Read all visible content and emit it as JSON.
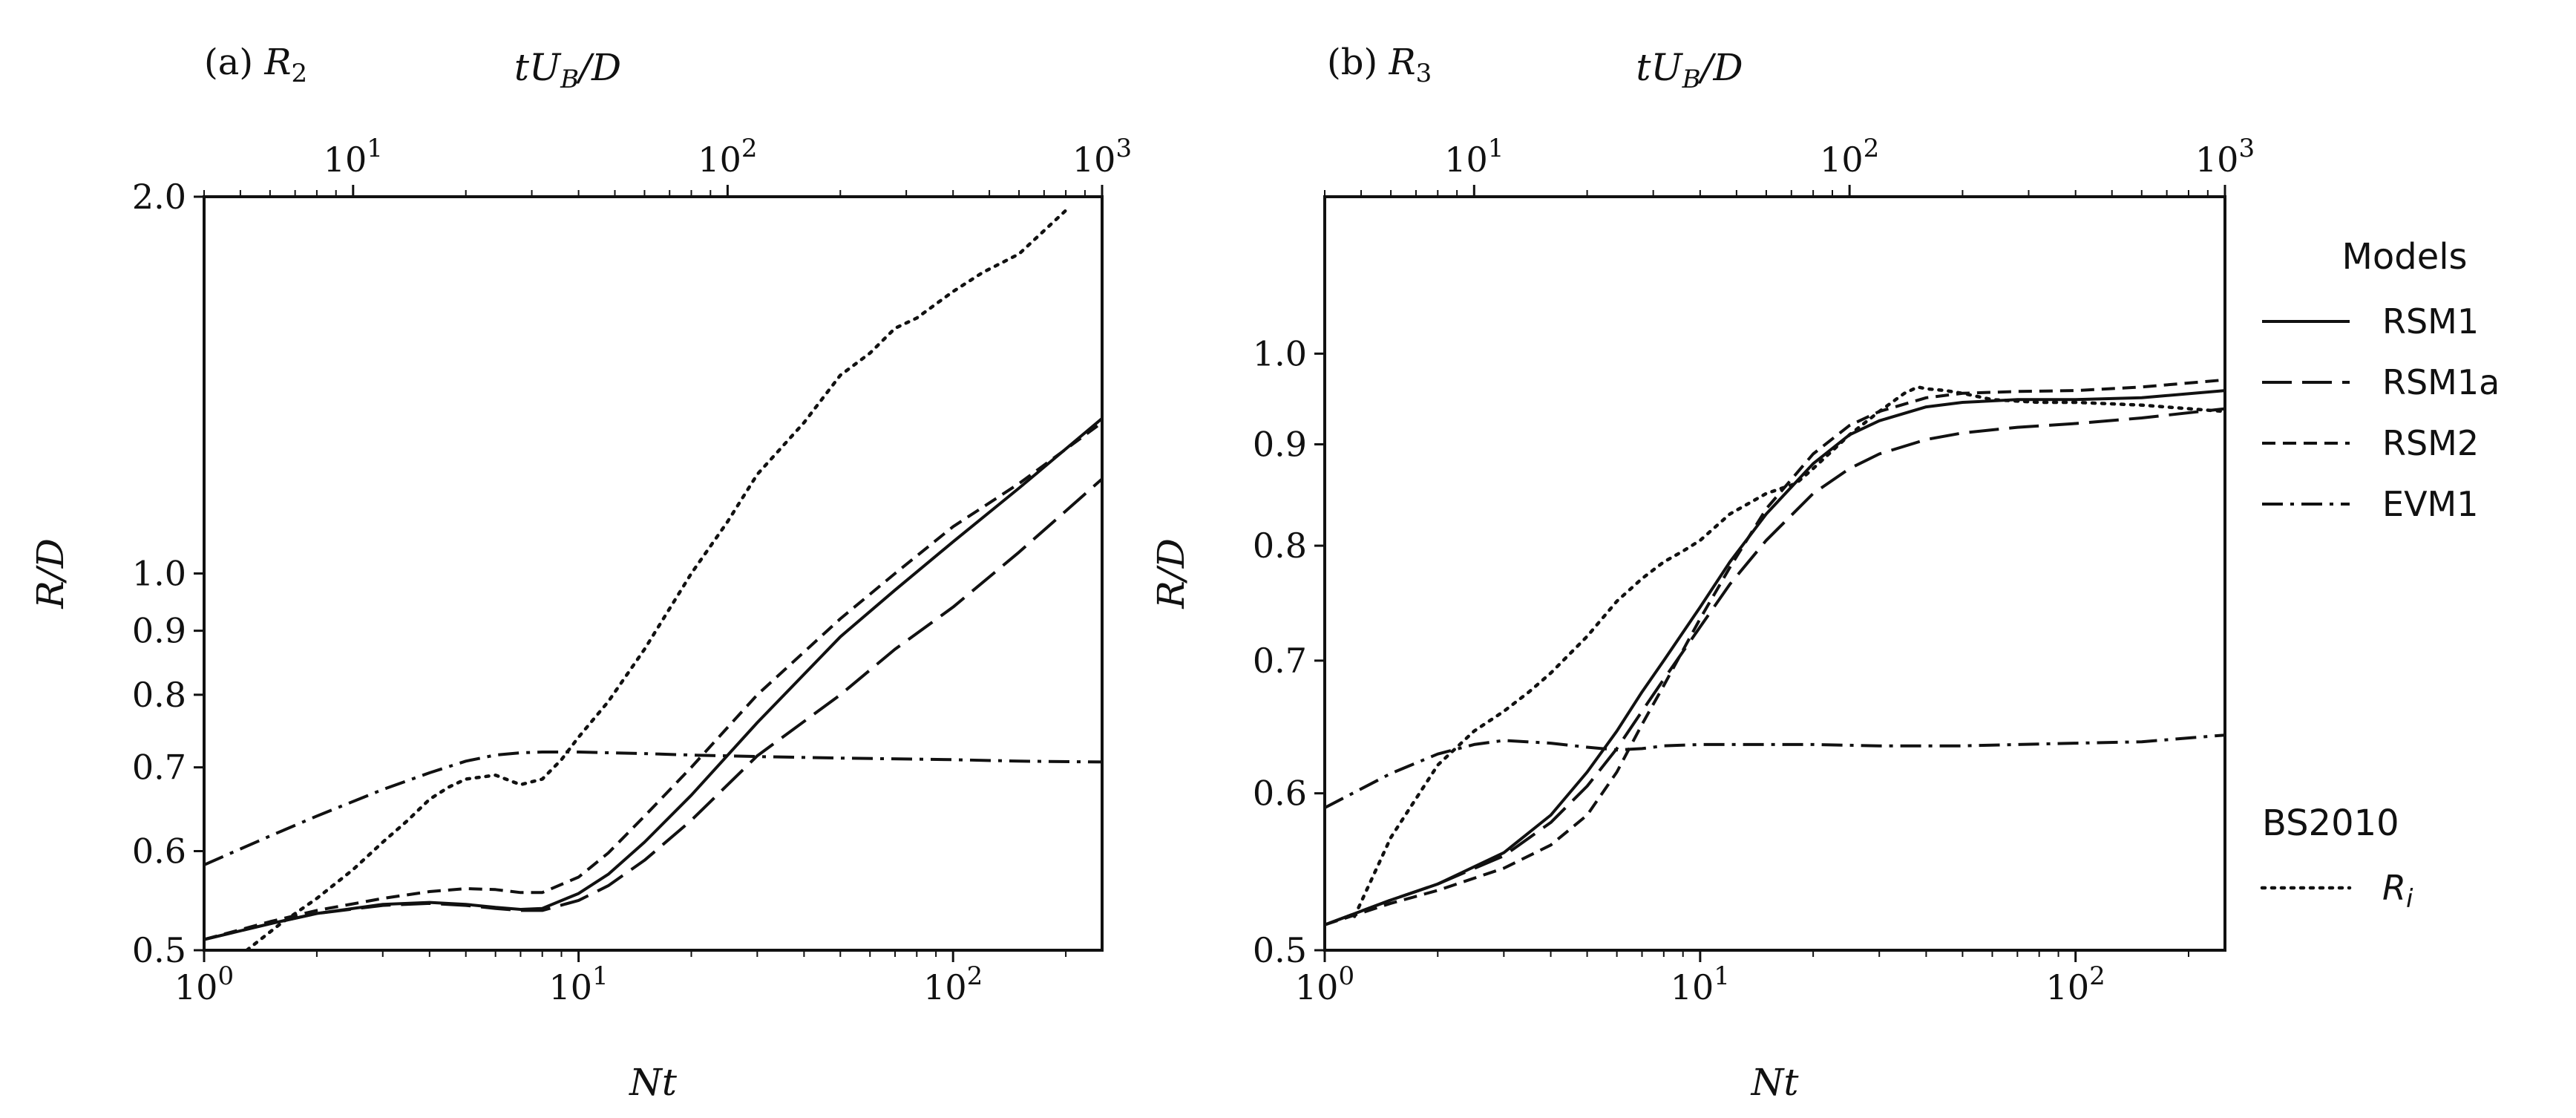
{
  "chart_data": [
    {
      "type": "line",
      "title": "(a) R₂",
      "xlabel": "Nt",
      "ylabel": "R/D",
      "top_xlabel": "tU_B/D",
      "xscale": "log",
      "yscale": "log",
      "xlim": [
        1,
        250
      ],
      "ylim": [
        0.5,
        2.0
      ],
      "top_xlim": [
        4,
        1000
      ],
      "x_ticks": [
        {
          "value": 1,
          "label": "10^0"
        },
        {
          "value": 10,
          "label": "10^1"
        },
        {
          "value": 100,
          "label": "10^2"
        }
      ],
      "top_x_ticks": [
        {
          "value": 10,
          "label": "10^1"
        },
        {
          "value": 100,
          "label": "10^2"
        },
        {
          "value": 1000,
          "label": "10^3"
        }
      ],
      "y_ticks": [
        {
          "value": 0.5,
          "label": "0.5"
        },
        {
          "value": 0.6,
          "label": "0.6"
        },
        {
          "value": 0.7,
          "label": "0.7"
        },
        {
          "value": 0.8,
          "label": "0.8"
        },
        {
          "value": 0.9,
          "label": "0.9"
        },
        {
          "value": 1.0,
          "label": "1.0"
        },
        {
          "value": 2.0,
          "label": "2.0"
        }
      ],
      "series": [
        {
          "name": "RSM1",
          "style": "solid",
          "x": [
            1,
            1.5,
            2,
            3,
            4,
            5,
            6,
            7,
            8,
            10,
            12,
            15,
            20,
            30,
            50,
            70,
            100,
            150,
            250
          ],
          "y": [
            0.51,
            0.525,
            0.535,
            0.544,
            0.546,
            0.544,
            0.541,
            0.539,
            0.54,
            0.555,
            0.575,
            0.61,
            0.665,
            0.76,
            0.89,
            0.97,
            1.06,
            1.17,
            1.33
          ]
        },
        {
          "name": "RSM1a",
          "style": "longdash",
          "x": [
            1,
            1.5,
            2,
            3,
            4,
            5,
            6,
            7,
            8,
            10,
            12,
            15,
            20,
            30,
            50,
            70,
            100,
            150,
            250
          ],
          "y": [
            0.51,
            0.525,
            0.535,
            0.543,
            0.545,
            0.543,
            0.54,
            0.538,
            0.538,
            0.548,
            0.563,
            0.59,
            0.635,
            0.715,
            0.8,
            0.87,
            0.94,
            1.04,
            1.19
          ]
        },
        {
          "name": "RSM2",
          "style": "dashed",
          "x": [
            1,
            1.5,
            2,
            3,
            4,
            5,
            6,
            7,
            8,
            10,
            12,
            15,
            20,
            30,
            50,
            70,
            100,
            150,
            250
          ],
          "y": [
            0.51,
            0.527,
            0.538,
            0.55,
            0.557,
            0.56,
            0.559,
            0.556,
            0.556,
            0.572,
            0.598,
            0.64,
            0.7,
            0.8,
            0.92,
            1.0,
            1.09,
            1.18,
            1.32
          ]
        },
        {
          "name": "EVM1",
          "style": "dashdot",
          "x": [
            1,
            1.5,
            2,
            3,
            4,
            5,
            6,
            7,
            8,
            10,
            15,
            20,
            30,
            50,
            100,
            150,
            250
          ],
          "y": [
            0.585,
            0.617,
            0.64,
            0.672,
            0.693,
            0.708,
            0.716,
            0.719,
            0.72,
            0.72,
            0.718,
            0.716,
            0.714,
            0.712,
            0.71,
            0.708,
            0.707
          ]
        },
        {
          "name": "BS2010 R_i",
          "style": "dotted",
          "x": [
            1.3,
            1.6,
            2,
            2.5,
            3,
            3.5,
            4,
            4.5,
            5,
            6,
            7,
            8,
            9,
            10,
            12,
            15,
            20,
            25,
            30,
            40,
            50,
            60,
            70,
            80,
            100,
            120,
            150,
            200
          ],
          "y": [
            0.5,
            0.525,
            0.55,
            0.58,
            0.61,
            0.635,
            0.66,
            0.675,
            0.685,
            0.69,
            0.678,
            0.685,
            0.71,
            0.74,
            0.79,
            0.87,
            1.0,
            1.1,
            1.2,
            1.32,
            1.44,
            1.5,
            1.57,
            1.6,
            1.68,
            1.74,
            1.8,
            1.95
          ]
        }
      ]
    },
    {
      "type": "line",
      "title": "(b) R₃",
      "xlabel": "Nt",
      "ylabel": "R/D",
      "top_xlabel": "tU_B/D",
      "xscale": "log",
      "yscale": "log",
      "xlim": [
        1,
        250
      ],
      "ylim": [
        0.5,
        1.2
      ],
      "top_xlim": [
        4,
        1000
      ],
      "x_ticks": [
        {
          "value": 1,
          "label": "10^0"
        },
        {
          "value": 10,
          "label": "10^1"
        },
        {
          "value": 100,
          "label": "10^2"
        }
      ],
      "top_x_ticks": [
        {
          "value": 10,
          "label": "10^1"
        },
        {
          "value": 100,
          "label": "10^2"
        },
        {
          "value": 1000,
          "label": "10^3"
        }
      ],
      "y_ticks": [
        {
          "value": 0.5,
          "label": "0.5"
        },
        {
          "value": 0.6,
          "label": "0.6"
        },
        {
          "value": 0.7,
          "label": "0.7"
        },
        {
          "value": 0.8,
          "label": "0.8"
        },
        {
          "value": 0.9,
          "label": "0.9"
        },
        {
          "value": 1.0,
          "label": "1.0"
        }
      ],
      "series": [
        {
          "name": "RSM1",
          "style": "solid",
          "x": [
            1,
            1.5,
            2,
            3,
            4,
            5,
            6,
            7,
            8,
            10,
            12,
            15,
            20,
            25,
            30,
            40,
            50,
            70,
            100,
            150,
            250
          ],
          "y": [
            0.515,
            0.53,
            0.54,
            0.56,
            0.585,
            0.615,
            0.645,
            0.675,
            0.7,
            0.745,
            0.785,
            0.83,
            0.88,
            0.91,
            0.925,
            0.94,
            0.945,
            0.948,
            0.948,
            0.95,
            0.958
          ]
        },
        {
          "name": "RSM1a",
          "style": "longdash",
          "x": [
            1,
            1.5,
            2,
            3,
            4,
            5,
            6,
            7,
            8,
            10,
            12,
            15,
            20,
            25,
            30,
            40,
            50,
            70,
            100,
            150,
            250
          ],
          "y": [
            0.515,
            0.53,
            0.54,
            0.558,
            0.58,
            0.605,
            0.632,
            0.66,
            0.685,
            0.728,
            0.765,
            0.805,
            0.85,
            0.875,
            0.89,
            0.905,
            0.912,
            0.918,
            0.922,
            0.928,
            0.938
          ]
        },
        {
          "name": "RSM2",
          "style": "dashed",
          "x": [
            1,
            1.5,
            2,
            3,
            4,
            5,
            6,
            7,
            8,
            10,
            12,
            15,
            20,
            25,
            30,
            40,
            50,
            70,
            100,
            150,
            250
          ],
          "y": [
            0.515,
            0.528,
            0.536,
            0.55,
            0.565,
            0.585,
            0.615,
            0.65,
            0.68,
            0.735,
            0.78,
            0.835,
            0.89,
            0.92,
            0.935,
            0.95,
            0.955,
            0.957,
            0.958,
            0.962,
            0.97
          ]
        },
        {
          "name": "EVM1",
          "style": "dashdot",
          "x": [
            1,
            1.5,
            2,
            2.5,
            3,
            4,
            5,
            6,
            7,
            8,
            10,
            15,
            20,
            30,
            50,
            70,
            100,
            150,
            250
          ],
          "y": [
            0.59,
            0.614,
            0.628,
            0.635,
            0.638,
            0.636,
            0.633,
            0.631,
            0.632,
            0.634,
            0.635,
            0.635,
            0.635,
            0.634,
            0.634,
            0.635,
            0.636,
            0.637,
            0.642
          ]
        },
        {
          "name": "BS2010 R_i",
          "style": "dotted",
          "x": [
            1.2,
            1.5,
            2,
            2.5,
            3,
            3.5,
            4,
            5,
            6,
            7,
            8,
            9,
            10,
            12,
            15,
            18,
            20,
            25,
            30,
            35,
            38,
            40,
            45,
            50,
            60,
            80,
            100,
            150,
            250
          ],
          "y": [
            0.52,
            0.57,
            0.62,
            0.645,
            0.66,
            0.675,
            0.69,
            0.72,
            0.75,
            0.77,
            0.785,
            0.795,
            0.805,
            0.83,
            0.85,
            0.86,
            0.875,
            0.91,
            0.935,
            0.955,
            0.962,
            0.96,
            0.958,
            0.955,
            0.948,
            0.945,
            0.945,
            0.942,
            0.935
          ]
        }
      ]
    }
  ],
  "legend": {
    "models_title": "Models",
    "models": [
      {
        "name": "RSM1",
        "label": "RSM1",
        "style": "solid"
      },
      {
        "name": "RSM1a",
        "label": "RSM1a",
        "style": "longdash"
      },
      {
        "name": "RSM2",
        "label": "RSM2",
        "style": "dashed"
      },
      {
        "name": "EVM1",
        "label": "EVM1",
        "style": "dashdot"
      }
    ],
    "reference_title": "BS2010",
    "reference": {
      "name": "BS2010 R_i",
      "label": "R_i",
      "style": "dotted"
    }
  }
}
